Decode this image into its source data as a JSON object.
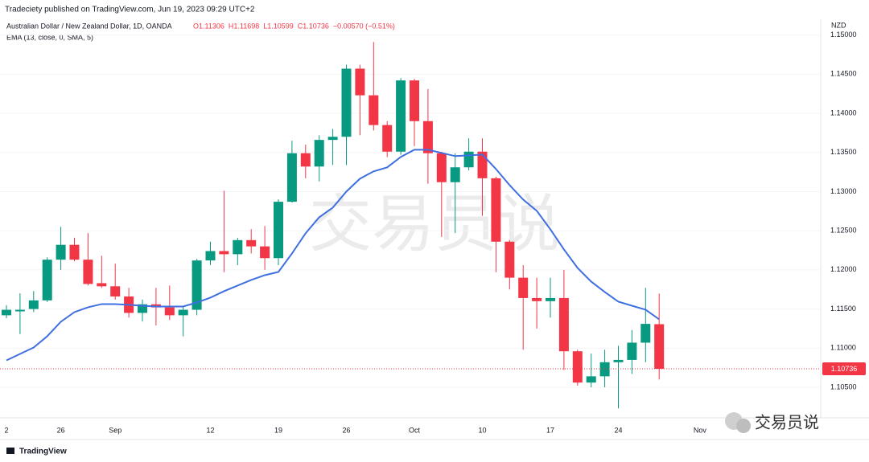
{
  "chart_data": {
    "type": "candlestick",
    "published": "Tradeciety published on TradingView.com, Jun 19, 2023 09:29 UTC+2",
    "title": "Australian Dollar / New Zealand Dollar, 1D, OANDA",
    "ohlc_legend": [
      "O1.11306",
      "H1.11698",
      "L1.10599",
      "C1.10736",
      "−0.00570 (−0.51%)"
    ],
    "currency": "NZD",
    "watermark": "交易员说",
    "wechat_label": "交易员说",
    "footer": "TradingView",
    "up_color": "#089981",
    "down_color": "#f23645",
    "grid": true,
    "categories": [
      "2",
      null,
      null,
      null,
      "26",
      null,
      null,
      null,
      "Sep",
      null,
      null,
      null,
      null,
      null,
      null,
      "12",
      null,
      null,
      null,
      null,
      "19",
      null,
      null,
      null,
      null,
      "26",
      null,
      null,
      null,
      null,
      "Oct",
      null,
      null,
      null,
      null,
      "10",
      null,
      null,
      null,
      null,
      "17",
      null,
      null,
      null,
      null,
      "24",
      null,
      null,
      null,
      null,
      null,
      "Nov"
    ],
    "open": [
      1.1142,
      1.1147,
      1.115,
      1.1161,
      1.1213,
      1.1232,
      1.1213,
      1.1183,
      1.1179,
      1.1166,
      1.1145,
      1.1156,
      1.1152,
      1.1142,
      1.1149,
      1.1212,
      1.1224,
      1.122,
      1.1238,
      1.123,
      1.1215,
      1.1287,
      1.1349,
      1.1332,
      1.1366,
      1.137,
      1.1457,
      1.1423,
      1.1385,
      1.1351,
      1.1442,
      1.139,
      1.1349,
      1.1312,
      1.1331,
      1.1351,
      1.1317,
      1.1236,
      1.119,
      1.1164,
      1.116,
      1.1164,
      1.1096,
      1.1056,
      1.1064,
      1.1082,
      1.1085,
      1.1107,
      1.11306,
      null,
      null,
      null
    ],
    "high": [
      1.1155,
      1.117,
      1.1173,
      1.1216,
      1.1255,
      1.1241,
      1.1247,
      1.1218,
      1.1208,
      1.1177,
      1.1162,
      1.1177,
      1.118,
      1.1154,
      1.1214,
      1.1236,
      1.1301,
      1.1241,
      1.1252,
      1.1256,
      1.129,
      1.1365,
      1.136,
      1.1372,
      1.138,
      1.1462,
      1.1462,
      1.1491,
      1.139,
      1.1445,
      1.1444,
      1.1431,
      1.1351,
      1.1349,
      1.1368,
      1.1368,
      1.1319,
      1.1238,
      1.1206,
      1.119,
      1.119,
      1.12,
      1.1098,
      1.1093,
      1.1098,
      1.1103,
      1.1123,
      1.1177,
      1.11698,
      null,
      null,
      null
    ],
    "low": [
      1.1138,
      1.1118,
      1.1146,
      1.1159,
      1.12,
      1.1211,
      1.118,
      1.1177,
      1.1162,
      1.1139,
      1.1134,
      1.1129,
      1.1136,
      1.1115,
      1.1142,
      1.1206,
      1.1197,
      1.1206,
      1.1221,
      1.12,
      1.1206,
      1.1286,
      1.1317,
      1.1313,
      1.1334,
      1.1334,
      1.1372,
      1.1378,
      1.1344,
      1.1347,
      1.1358,
      1.131,
      1.1242,
      1.1247,
      1.1327,
      1.1269,
      1.1197,
      1.1175,
      1.1098,
      1.1125,
      1.1139,
      1.1072,
      1.1052,
      1.105,
      1.105,
      1.1023,
      1.1067,
      1.1082,
      1.10599,
      null,
      null,
      null
    ],
    "close": [
      1.1149,
      1.1149,
      1.1161,
      1.1213,
      1.1232,
      1.1213,
      1.1182,
      1.1179,
      1.1166,
      1.1145,
      1.1156,
      1.1152,
      1.1142,
      1.1149,
      1.1212,
      1.1224,
      1.122,
      1.1238,
      1.123,
      1.1215,
      1.1287,
      1.1349,
      1.1332,
      1.1366,
      1.137,
      1.1457,
      1.1423,
      1.1385,
      1.1351,
      1.1442,
      1.139,
      1.1349,
      1.1312,
      1.1331,
      1.1351,
      1.1317,
      1.1236,
      1.119,
      1.1164,
      1.116,
      1.1164,
      1.1096,
      1.1056,
      1.1064,
      1.1082,
      1.1085,
      1.1107,
      1.1131,
      1.10736,
      null,
      null,
      null
    ],
    "ema": {
      "name": "EMA (13, close, 0, SMA, 5)",
      "color": "#3f6fe0",
      "values": [
        1.10844,
        1.10926,
        1.11008,
        1.11152,
        1.11337,
        1.1146,
        1.11522,
        1.11563,
        1.11563,
        1.11553,
        1.11542,
        1.11532,
        1.11532,
        1.11532,
        1.11583,
        1.11645,
        1.11727,
        1.11799,
        1.11871,
        1.11932,
        1.11973,
        1.1221,
        1.12467,
        1.12672,
        1.12795,
        1.13001,
        1.13165,
        1.13258,
        1.13309,
        1.13442,
        1.13535,
        1.13535,
        1.13494,
        1.13453,
        1.13463,
        1.13473,
        1.13288,
        1.13083,
        1.12898,
        1.12754,
        1.12518,
        1.12261,
        1.12025,
        1.1185,
        1.11717,
        1.11594,
        1.11542,
        1.11491,
        1.11368,
        null,
        null,
        null
      ]
    },
    "last_price": 1.10736,
    "ylim": [
      1.1011,
      1.1516
    ],
    "yticks": [
      {
        "value": 1.105,
        "label": "1.10500"
      },
      {
        "value": 1.11,
        "label": "1.11000"
      },
      {
        "value": 1.115,
        "label": "1.11500"
      },
      {
        "value": 1.12,
        "label": "1.12000"
      },
      {
        "value": 1.125,
        "label": "1.12500"
      },
      {
        "value": 1.13,
        "label": "1.13000"
      },
      {
        "value": 1.135,
        "label": "1.13500"
      },
      {
        "value": 1.14,
        "label": "1.14000"
      },
      {
        "value": 1.145,
        "label": "1.14500"
      },
      {
        "value": 1.15,
        "label": "1.15000"
      }
    ]
  }
}
